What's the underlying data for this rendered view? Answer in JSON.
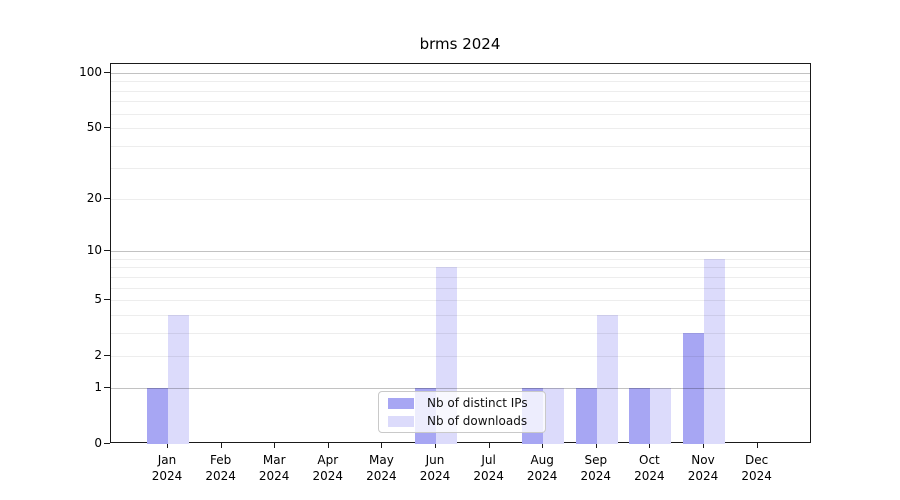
{
  "chart_data": {
    "type": "bar",
    "title": "brms 2024",
    "categories": [
      "Jan 2024",
      "Feb 2024",
      "Mar 2024",
      "Apr 2024",
      "May 2024",
      "Jun 2024",
      "Jul 2024",
      "Aug 2024",
      "Sep 2024",
      "Oct 2024",
      "Nov 2024",
      "Dec 2024"
    ],
    "series": [
      {
        "name": "Nb of distinct IPs",
        "color": "#a7a6f3",
        "values": [
          1,
          0,
          0,
          0,
          0,
          1,
          0,
          1,
          1,
          1,
          3,
          0
        ]
      },
      {
        "name": "Nb of downloads",
        "color": "#dcdbfb",
        "values": [
          4,
          0,
          0,
          0,
          0,
          8,
          0,
          1,
          4,
          1,
          9,
          0
        ]
      }
    ],
    "yticks": [
      0,
      1,
      2,
      5,
      10,
      20,
      50,
      100
    ],
    "gridlines_major": [
      1,
      10,
      100
    ],
    "gridlines_minor": [
      2,
      3,
      4,
      5,
      6,
      7,
      8,
      9,
      20,
      30,
      40,
      50,
      60,
      70,
      80,
      90
    ],
    "yscale": "log1p",
    "ylim": [
      0,
      112
    ],
    "grid": true,
    "legend_position": "lower center",
    "xlabel": "",
    "ylabel": ""
  }
}
